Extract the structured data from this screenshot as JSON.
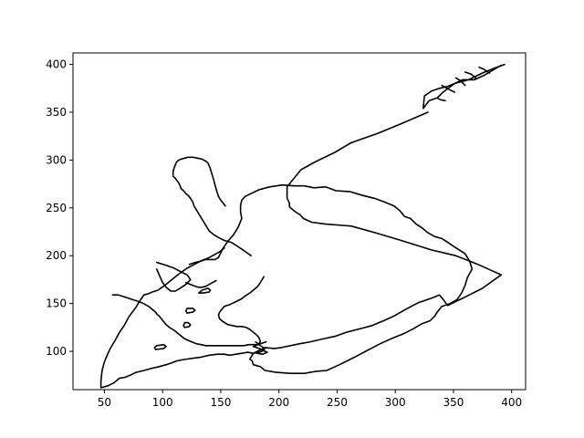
{
  "chart_data": {
    "type": "line",
    "title": "",
    "xlabel": "",
    "ylabel": "",
    "xlim": [
      23,
      412
    ],
    "ylim": [
      60,
      412
    ],
    "xticks": [
      50,
      100,
      150,
      200,
      250,
      300,
      350,
      400
    ],
    "yticks": [
      100,
      150,
      200,
      250,
      300,
      350,
      400
    ],
    "grid": false,
    "line_color": "#000000",
    "series": [
      {
        "x": [
          391,
          377,
          368,
          358,
          351,
          345,
          338,
          331,
          325,
          324,
          329,
          336,
          341,
          351,
          363,
          375,
          385,
          394
        ],
        "y": [
          399,
          389,
          384,
          384,
          380,
          377,
          375,
          372,
          367,
          354,
          362,
          365,
          371,
          380,
          384,
          391,
          396,
          400
        ]
      },
      {
        "x": [
          328,
          305,
          285,
          262,
          248,
          231,
          219,
          213,
          207,
          207,
          209,
          209,
          214,
          218,
          221,
          228,
          240,
          262,
          283,
          305,
          331,
          352,
          371,
          391
        ],
        "y": [
          350,
          338,
          328,
          318,
          308,
          298,
          290,
          281,
          272,
          260,
          255,
          251,
          246,
          243,
          239,
          235,
          233,
          231,
          224,
          216,
          206,
          200,
          191,
          180
        ]
      },
      {
        "x": [
          391,
          375,
          357,
          345,
          342,
          340,
          338,
          332,
          320,
          309,
          299,
          290,
          280,
          271,
          258,
          249,
          238,
          227,
          218,
          210,
          202,
          196,
          188,
          183,
          178,
          176,
          175,
          177,
          178,
          184,
          188,
          198,
          210,
          222,
          231,
          241,
          252,
          265,
          276,
          287,
          298,
          308,
          316,
          323,
          330,
          334
        ],
        "y": [
          180,
          166,
          155,
          148,
          153,
          156,
          159,
          156,
          151,
          144,
          137,
          132,
          127,
          124,
          120,
          116,
          113,
          110,
          108,
          106,
          104,
          103,
          104,
          101,
          98,
          94,
          92,
          90,
          86,
          84,
          80,
          78,
          77,
          77,
          79,
          80,
          86,
          94,
          101,
          108,
          114,
          119,
          124,
          129,
          132,
          137
        ]
      },
      {
        "x": [
          334,
          336,
          340,
          347,
          353,
          357,
          360,
          362,
          366,
          364,
          360,
          355,
          350,
          345,
          340,
          334,
          328,
          323,
          318,
          313
        ],
        "y": [
          137,
          141,
          147,
          150,
          154,
          161,
          169,
          177,
          186,
          194,
          202,
          206,
          210,
          214,
          218,
          220,
          224,
          229,
          233,
          239
        ]
      },
      {
        "x": [
          313,
          308,
          304,
          299,
          291,
          282,
          272,
          261,
          249,
          240,
          230,
          222,
          213,
          203,
          192,
          183,
          176,
          171,
          168,
          167,
          167,
          168
        ],
        "y": [
          239,
          241,
          247,
          252,
          256,
          260,
          263,
          267,
          268,
          272,
          271,
          273,
          273,
          274,
          272,
          269,
          265,
          262,
          258,
          252,
          246,
          239
        ]
      },
      {
        "x": [
          168,
          165,
          161,
          156,
          152,
          150,
          148,
          145,
          141,
          137,
          132,
          126,
          121,
          114,
          108,
          102,
          96,
          91,
          87,
          84
        ],
        "y": [
          239,
          230,
          222,
          215,
          208,
          203,
          198,
          196,
          196,
          196,
          194,
          190,
          187,
          181,
          175,
          169,
          164,
          162,
          160,
          159
        ]
      },
      {
        "x": [
          84,
          81,
          77,
          71,
          67,
          63,
          59,
          55,
          52,
          50,
          48,
          47,
          47,
          50,
          53,
          58,
          63,
          68,
          72
        ],
        "y": [
          159,
          154,
          146,
          136,
          127,
          120,
          111,
          103,
          95,
          89,
          80,
          69,
          62,
          63,
          64,
          67,
          72,
          73,
          75
        ]
      },
      {
        "x": [
          72,
          77,
          84,
          90,
          97,
          103,
          108,
          112,
          116,
          121,
          127,
          133,
          140,
          147,
          153,
          158,
          163,
          168,
          173,
          178,
          182,
          185,
          187
        ],
        "y": [
          75,
          78,
          80,
          82,
          84,
          86,
          88,
          90,
          91,
          92,
          93,
          94,
          96,
          97,
          97,
          96,
          97,
          98,
          99,
          98,
          99,
          100,
          101
        ]
      },
      {
        "x": [
          176,
          169,
          163,
          159,
          153,
          148,
          144,
          140,
          137,
          135,
          133,
          131,
          129,
          127,
          126,
          124,
          122,
          120,
          118,
          116,
          115,
          114,
          112,
          111,
          110,
          109
        ],
        "y": [
          200,
          206,
          211,
          214,
          216,
          219,
          222,
          226,
          232,
          236,
          240,
          244,
          248,
          252,
          256,
          260,
          263,
          265,
          268,
          270,
          273,
          276,
          279,
          281,
          282,
          283
        ]
      },
      {
        "x": [
          109,
          109,
          110,
          111,
          112,
          114,
          116,
          119,
          122,
          126,
          130,
          134,
          137,
          139,
          140,
          141,
          142,
          143,
          144,
          145,
          146,
          147,
          148,
          150,
          152,
          154
        ],
        "y": [
          283,
          288,
          292,
          295,
          298,
          300,
          301,
          302,
          303,
          303,
          302,
          301,
          299,
          297,
          294,
          291,
          287,
          283,
          279,
          274,
          270,
          266,
          262,
          258,
          255,
          252
        ]
      },
      {
        "x": [
          57,
          62,
          67,
          72,
          77,
          82,
          85,
          88,
          90,
          92,
          94,
          95,
          97,
          99,
          101,
          103,
          106,
          110,
          113,
          116,
          118
        ],
        "y": [
          159,
          159,
          157,
          155,
          153,
          151,
          149,
          147,
          145,
          143,
          141,
          139,
          137,
          134,
          131,
          128,
          125,
          122,
          119,
          116,
          114
        ]
      },
      {
        "x": [
          118,
          121,
          125,
          129,
          133,
          137,
          141,
          145,
          149,
          153,
          157,
          162,
          166,
          170,
          174,
          178,
          182
        ],
        "y": [
          114,
          112,
          110,
          108,
          107,
          106,
          106,
          106,
          106,
          106,
          106,
          106,
          106,
          106,
          107,
          107,
          107
        ]
      },
      {
        "x": [
          182,
          184,
          183,
          181,
          178,
          175,
          172,
          168,
          164,
          160,
          156,
          152,
          149,
          148,
          149,
          151,
          153
        ],
        "y": [
          107,
          110,
          114,
          117,
          120,
          123,
          125,
          126,
          126,
          127,
          128,
          131,
          134,
          138,
          141,
          144,
          147
        ]
      },
      {
        "x": [
          153,
          158,
          163,
          168,
          171,
          175,
          178,
          181,
          183,
          185,
          187
        ],
        "y": [
          147,
          149,
          152,
          155,
          158,
          161,
          164,
          167,
          170,
          174,
          178
        ]
      },
      {
        "x": [
          95,
          103,
          110,
          116,
          121,
          124,
          120,
          115,
          111,
          107,
          103,
          100,
          97,
          95
        ],
        "y": [
          193,
          190,
          187,
          183,
          180,
          175,
          170,
          166,
          163,
          163,
          167,
          172,
          180,
          186
        ]
      },
      {
        "x": [
          123,
          128,
          132,
          136,
          140,
          143,
          146,
          149,
          151,
          153
        ],
        "y": [
          191,
          193,
          194,
          196,
          198,
          200,
          202,
          204,
          206,
          208
        ]
      },
      {
        "x": [
          120,
          124,
          128,
          131,
          134,
          137,
          140,
          143,
          146
        ],
        "y": [
          172,
          170,
          168,
          167,
          167,
          168,
          170,
          172,
          174
        ]
      },
      {
        "x": [
          135,
          140,
          141,
          139,
          134,
          131,
          135
        ],
        "y": [
          161,
          162,
          164,
          166,
          164,
          161,
          161
        ]
      },
      {
        "x": [
          121,
          126,
          128,
          126,
          121,
          120,
          121
        ],
        "y": [
          140,
          141,
          143,
          145,
          145,
          142,
          140
        ]
      },
      {
        "x": [
          119,
          123,
          124,
          122,
          119,
          118,
          119
        ],
        "y": [
          125,
          126,
          128,
          130,
          130,
          127,
          125
        ]
      },
      {
        "x": [
          94,
          101,
          103,
          101,
          95,
          93,
          94
        ],
        "y": [
          102,
          103,
          105,
          107,
          106,
          104,
          102
        ]
      },
      {
        "x": [
          180,
          184,
          188,
          185,
          181,
          186,
          190,
          183,
          178,
          184,
          189
        ],
        "y": [
          110,
          106,
          103,
          100,
          98,
          97,
          99,
          103,
          105,
          108,
          110
        ]
      },
      {
        "x": [
          351,
          346,
          340
        ],
        "y": [
          371,
          374,
          378
        ]
      },
      {
        "x": [
          360,
          356,
          352
        ],
        "y": [
          378,
          383,
          386
        ]
      },
      {
        "x": [
          370,
          365,
          360
        ],
        "y": [
          385,
          390,
          392
        ]
      },
      {
        "x": [
          381,
          376,
          372
        ],
        "y": [
          391,
          395,
          397
        ]
      },
      {
        "x": [
          343,
          339,
          336
        ],
        "y": [
          362,
          363,
          365
        ]
      }
    ]
  }
}
